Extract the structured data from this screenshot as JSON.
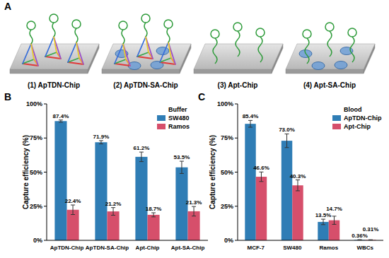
{
  "panel_labels": [
    "A",
    "B",
    "C"
  ],
  "schematic": {
    "labels": [
      "(1) ApTDN-Chip",
      "(2) ApTDN-SA-Chip",
      "(3) Apt-Chip",
      "(4) Apt-SA-Chip"
    ]
  },
  "chart_data": [
    {
      "type": "bar",
      "ylabel": "Capture efficiency (%)",
      "legend_title": "Buffer",
      "categories": [
        "ApTDN-Chip",
        "ApTDN-SA-Chip",
        "Apt-Chip",
        "Apt-SA-Chip"
      ],
      "series": [
        {
          "name": "SW480",
          "color": "#2f7db5",
          "values": [
            87.4,
            71.9,
            61.2,
            53.5
          ],
          "errors": [
            0.8,
            1.2,
            3.5,
            4.5
          ],
          "value_labels": [
            "87.4%",
            "71.9%",
            "61.2%",
            "53.5%"
          ]
        },
        {
          "name": "Ramos",
          "color": "#d64f6b",
          "values": [
            22.4,
            21.2,
            18.7,
            21.3
          ],
          "errors": [
            3.5,
            2.8,
            1.5,
            3.5
          ],
          "value_labels": [
            "22.4%",
            "21.2%",
            "18.7%",
            "21.3%"
          ]
        }
      ],
      "ylim": [
        0,
        100
      ],
      "yticks": [
        {
          "value": 0,
          "label": "0%"
        },
        {
          "value": 25,
          "label": "25%"
        },
        {
          "value": 50,
          "label": "50%"
        },
        {
          "value": 75,
          "label": "75%"
        },
        {
          "value": 100,
          "label": "100%"
        }
      ],
      "legend": "upper right",
      "data_labels": true,
      "grid": false
    },
    {
      "type": "bar",
      "ylabel": "Capture efficiency (%)",
      "legend_title": "Blood",
      "categories": [
        "MCF-7",
        "SW480",
        "Ramos",
        "WBCs"
      ],
      "series": [
        {
          "name": "ApTDN-Chip",
          "color": "#2f7db5",
          "values": [
            85.4,
            73.0,
            13.5,
            0.36
          ],
          "errors": [
            2.5,
            5.0,
            2.0,
            0.1
          ],
          "value_labels": [
            "85.4%",
            "73.0%",
            "13.5%",
            "0.36%"
          ]
        },
        {
          "name": "Apt-Chip",
          "color": "#d64f6b",
          "values": [
            46.6,
            40.3,
            14.7,
            0.31
          ],
          "errors": [
            3.5,
            4.0,
            3.0,
            0.1
          ],
          "value_labels": [
            "46.6%",
            "40.3%",
            "14.7%",
            "0.31%"
          ]
        }
      ],
      "ylim": [
        0,
        100
      ],
      "yticks": [
        {
          "value": 0,
          "label": "0%"
        },
        {
          "value": 25,
          "label": "25%"
        },
        {
          "value": 50,
          "label": "50%"
        },
        {
          "value": 75,
          "label": "75%"
        },
        {
          "value": 100,
          "label": "100%"
        }
      ],
      "legend": "upper right",
      "data_labels": true,
      "grid": false
    }
  ]
}
